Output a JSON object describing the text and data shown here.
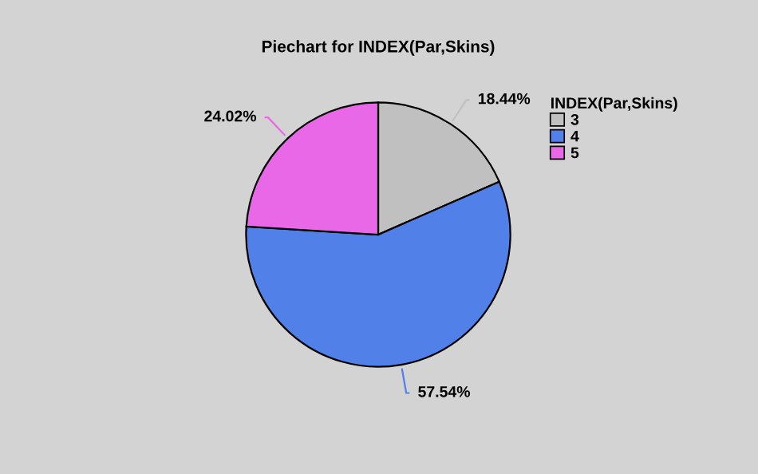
{
  "chart_data": {
    "type": "pie",
    "title": "Piechart for INDEX(Par,Skins)",
    "legend_title": "INDEX(Par,Skins)",
    "legend": "top right",
    "categories": [
      "3",
      "4",
      "5"
    ],
    "values": [
      18.44,
      57.54,
      24.02
    ],
    "colors": [
      "#c0c0c0",
      "#5080e8",
      "#e868e8"
    ],
    "value_labels": [
      "18.44%",
      "57.54%",
      "24.02%"
    ]
  }
}
